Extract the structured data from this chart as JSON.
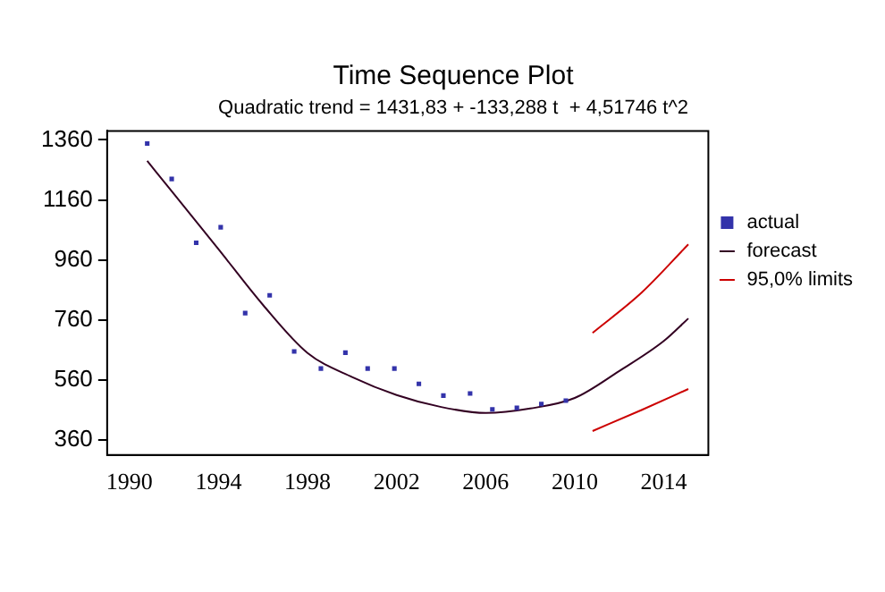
{
  "chart_data": {
    "type": "scatter",
    "title": "Time Sequence Plot",
    "subtitle": "Quadratic trend = 1431,83 + -133,288 t  + 4,51746 t^2",
    "xlim": [
      1989,
      2016
    ],
    "xticks": [
      1990,
      1994,
      1998,
      2002,
      2006,
      2010,
      2014
    ],
    "ylim": [
      310,
      1390
    ],
    "yticks": [
      360,
      560,
      760,
      960,
      1160,
      1360
    ],
    "grid": false,
    "legend": "right",
    "series": [
      {
        "name": "actual",
        "marker": "square",
        "color": "#3333aa",
        "x": [
          1990.8,
          1991.9,
          1993.0,
          1994.1,
          1995.2,
          1996.3,
          1997.4,
          1998.6,
          1999.7,
          2000.7,
          2001.9,
          2003.0,
          2004.1,
          2005.3,
          2006.3,
          2007.4,
          2008.5,
          2009.6
        ],
        "values": [
          1348,
          1230,
          1017,
          1069,
          783,
          842,
          655,
          598,
          651,
          598,
          598,
          547,
          508,
          515,
          462,
          467,
          480,
          491
        ]
      },
      {
        "name": "forecast",
        "type": "line",
        "marker": "none",
        "color": "#330022",
        "x": [
          1990.8,
          1992,
          1994,
          1996,
          1998,
          2000,
          2002,
          2004,
          2006,
          2008,
          2010,
          2012,
          2014,
          2015.1
        ],
        "values": [
          1290,
          1180,
          996,
          810,
          650,
          570,
          510,
          470,
          450,
          465,
          500,
          590,
          690,
          765
        ]
      },
      {
        "name": "95,0% limits",
        "type": "line",
        "marker": "none",
        "color": "#cc0000",
        "x": [
          2010.8,
          2013,
          2015.1
        ],
        "values": [
          717,
          851,
          1012
        ]
      },
      {
        "type": "line",
        "marker": "none",
        "color": "#cc0000",
        "x": [
          2010.8,
          2013,
          2015.1
        ],
        "values": [
          390,
          460,
          530
        ]
      }
    ]
  }
}
